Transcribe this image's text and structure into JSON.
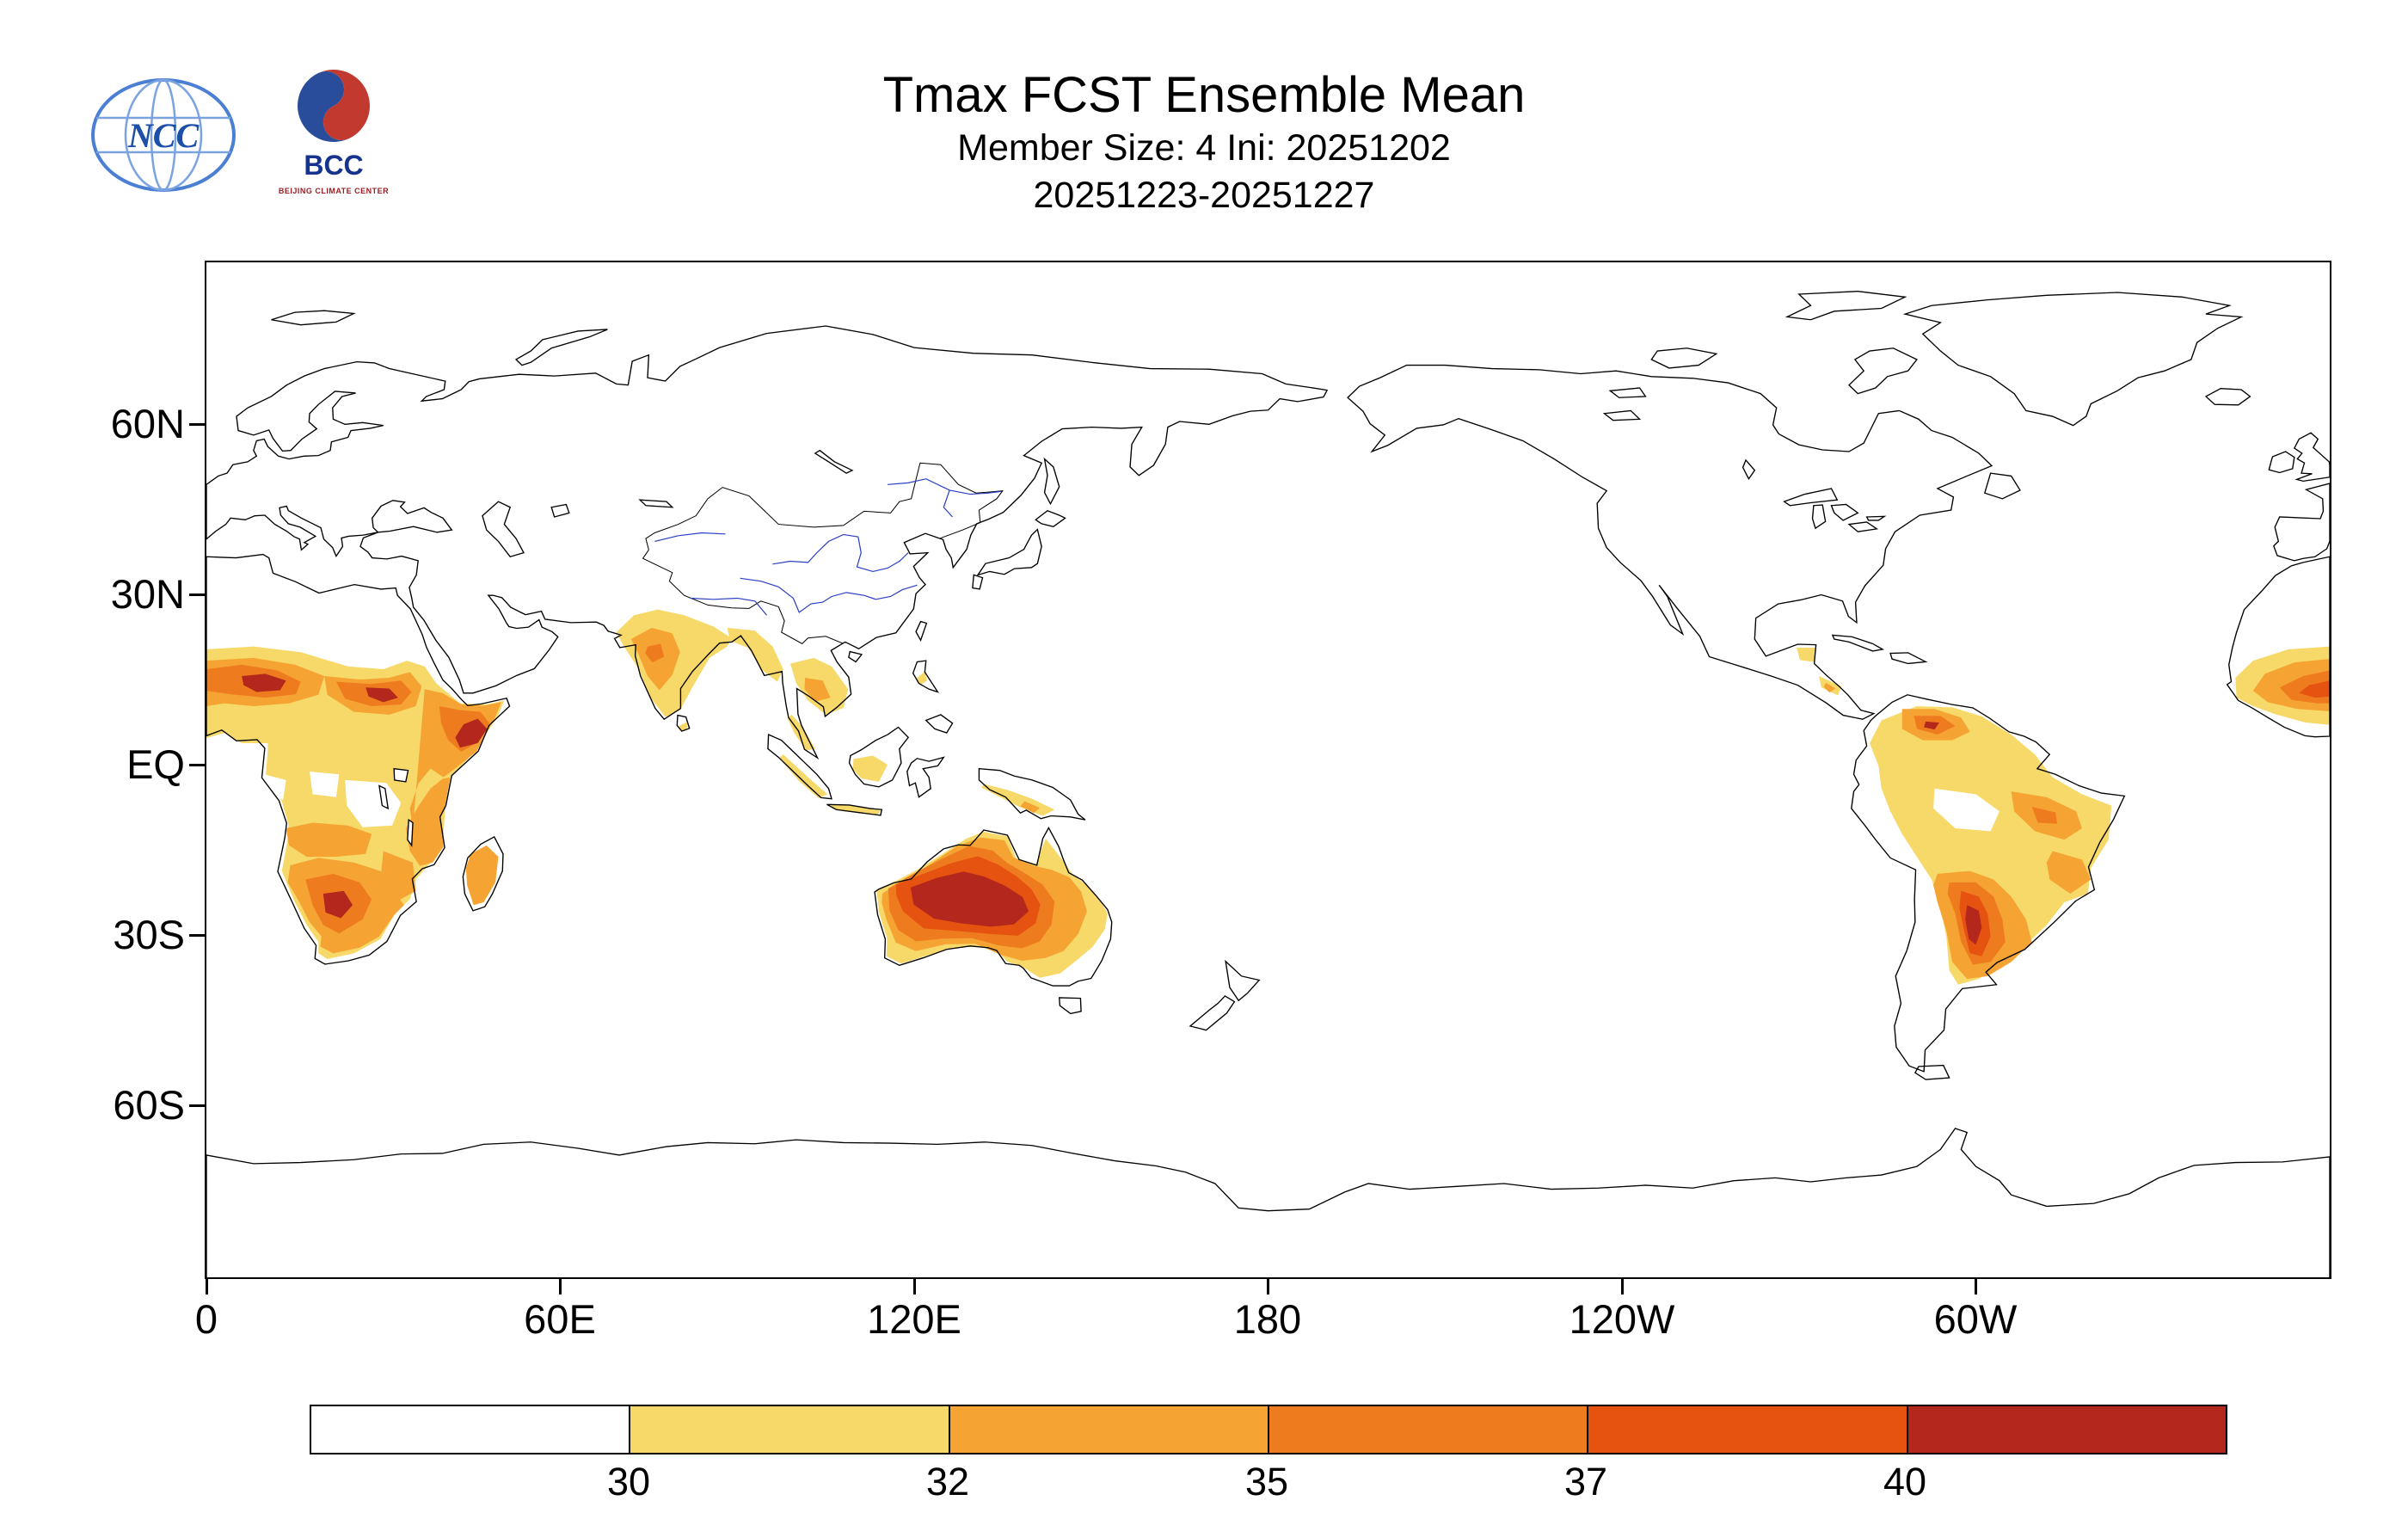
{
  "header": {
    "title": "Tmax FCST Ensemble Mean",
    "subtitle": "Member Size: 4  Ini: 20251202",
    "date_range": "20251223-20251227",
    "logos": {
      "ncc_label": "NCC",
      "bcc_label": "BCC",
      "bcc_caption": "BEIJING CLIMATE CENTER"
    }
  },
  "chart_data": {
    "type": "heatmap",
    "title": "Tmax FCST Ensemble Mean",
    "subtitle": "Member Size: 4  Ini: 20251202",
    "valid_period": "20251223-20251227",
    "variable": "Forecast ensemble-mean daily maximum temperature",
    "map": {
      "projection": "equirectangular",
      "lon_range_deg_east": [
        0,
        360
      ],
      "lat_range": [
        -90,
        90
      ],
      "overlay_lines": "coastlines black; China rivers and border shown in blue/black"
    },
    "x_ticks": [
      "0",
      "60E",
      "120E",
      "180",
      "120W",
      "60W"
    ],
    "y_ticks": [
      "60N",
      "30N",
      "EQ",
      "30S",
      "60S"
    ],
    "colorbar": {
      "levels": [
        "30",
        "32",
        "35",
        "37",
        "40"
      ],
      "colors": [
        "#FFFFFF",
        "#F7D969",
        "#F5A433",
        "#EE7C1F",
        "#E65311",
        "#B3271C"
      ]
    },
    "regions": [
      {
        "area": "Sahel and sub-Saharan Africa",
        "tmax_band": "32-37"
      },
      {
        "area": "Horn of Africa (Somalia/Ethiopia)",
        "tmax_band": "37-40+"
      },
      {
        "area": "Southern Africa (Namibia/Botswana/Kalahari)",
        "tmax_band": "35-40"
      },
      {
        "area": "Madagascar",
        "tmax_band": "30-35"
      },
      {
        "area": "India peninsula",
        "tmax_band": "30-35"
      },
      {
        "area": "Indochina and maritime continent fringes",
        "tmax_band": "30-32"
      },
      {
        "area": "Australia west and interior",
        "tmax_band": "37-40"
      },
      {
        "area": "Central-west Australia core",
        "tmax_band": "40+"
      },
      {
        "area": "Northern South America (Venezuela/Colombia)",
        "tmax_band": "32-37"
      },
      {
        "area": "Central and northeast Brazil",
        "tmax_band": "30-35"
      },
      {
        "area": "Gran Chaco / northern Argentina",
        "tmax_band": "37-40 with 40+ spots"
      },
      {
        "area": "West Africa (wraps at right map edge)",
        "tmax_band": "32-40"
      }
    ]
  }
}
